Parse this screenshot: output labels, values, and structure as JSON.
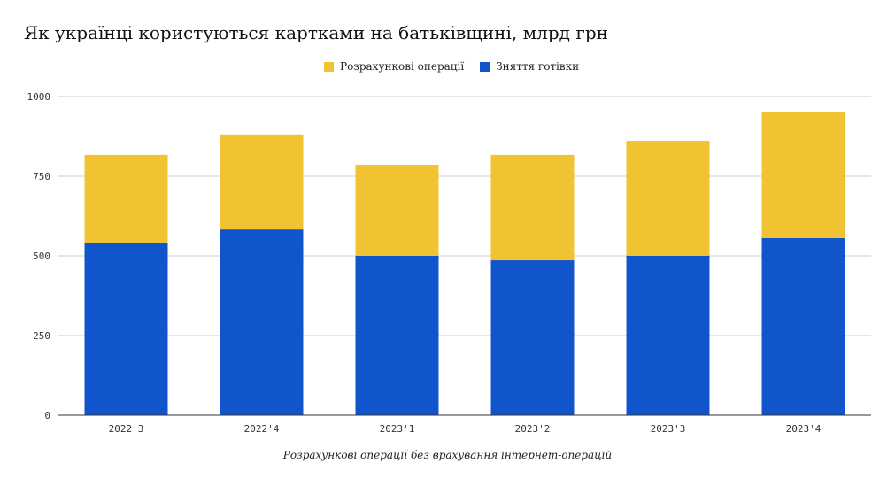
{
  "chart_data": {
    "type": "bar",
    "stacked": true,
    "title": "Як українці користуються картками на батьківщині, млрд грн",
    "xlabel": "Розрахункові операції без врахування інтернет-операцій",
    "ylabel": "",
    "categories": [
      "2022'3",
      "2022'4",
      "2023'1",
      "2023'2",
      "2023'3",
      "2023'4"
    ],
    "series": [
      {
        "name": "Зняття готівки",
        "color": "#1155cc",
        "values": [
          542,
          583,
          500,
          486,
          500,
          556
        ]
      },
      {
        "name": "Розрахункові операції",
        "color": "#f1c232",
        "values": [
          275,
          298,
          286,
          331,
          361,
          394
        ]
      }
    ],
    "legend_order": [
      "Розрахункові операції",
      "Зняття готівки"
    ],
    "legend_placement": "top-center",
    "ylim": [
      0,
      1000
    ],
    "yticks": [
      0,
      250,
      500,
      750,
      1000
    ],
    "grid": true
  }
}
